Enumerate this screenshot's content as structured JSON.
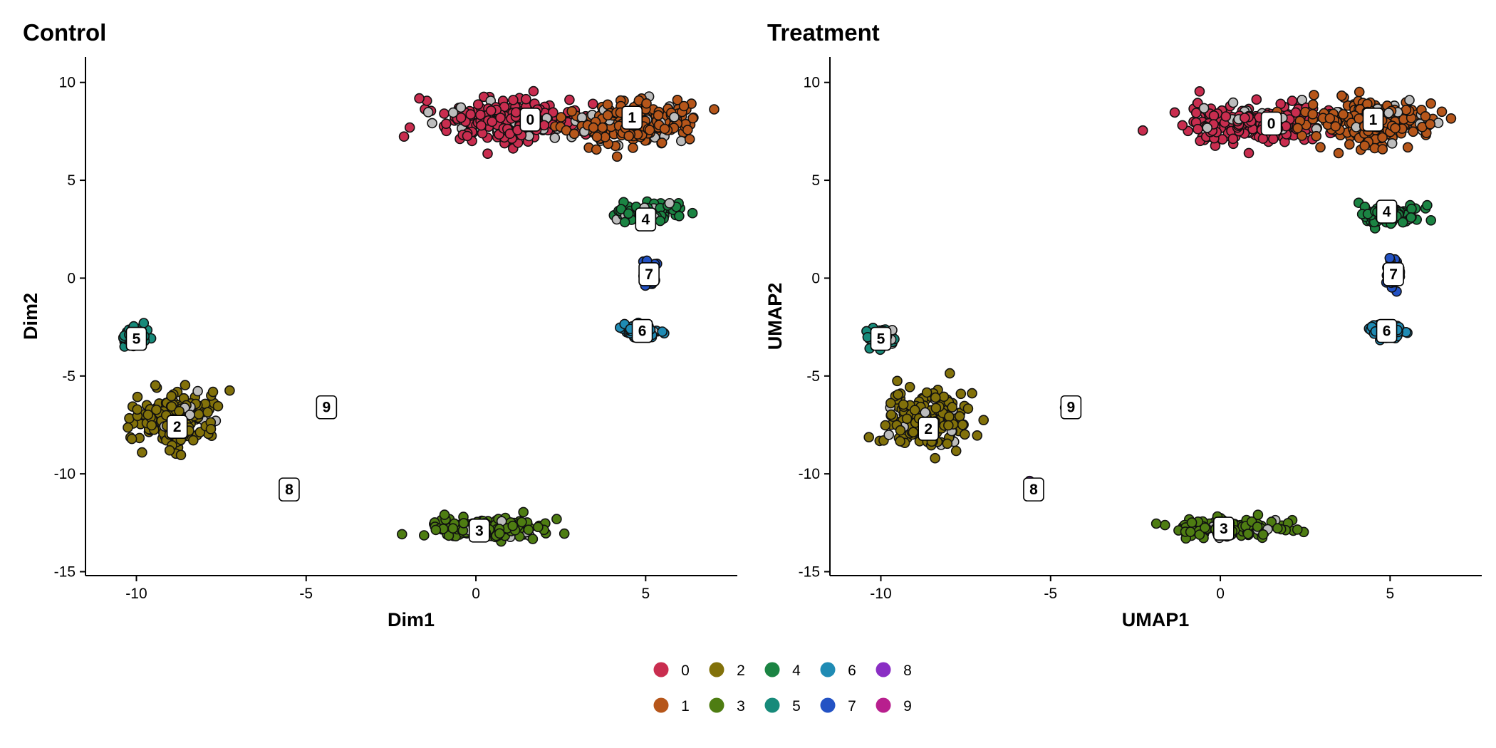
{
  "chart_data": [
    {
      "type": "scatter",
      "title": "Control",
      "xlabel": "Dim1",
      "ylabel": "Dim2",
      "xlim": [
        -11.5,
        7.7
      ],
      "ylim": [
        -15.2,
        11.3
      ],
      "xticks": [
        -10,
        -5,
        0,
        5
      ],
      "yticks": [
        -15,
        -10,
        -5,
        0,
        5,
        10
      ],
      "xtick_labels": [
        "-10",
        "-5",
        "0",
        "5"
      ],
      "ytick_labels": [
        "-15",
        "-10",
        "-5",
        "0",
        "5",
        "10"
      ],
      "grid": false,
      "clusters": [
        {
          "name": "0",
          "label_x": 1.6,
          "label_y": 8.1,
          "center": [
            1.0,
            8.0
          ],
          "spread": [
            1.9,
            0.85
          ],
          "n": 260
        },
        {
          "name": "1",
          "label_x": 4.6,
          "label_y": 8.2,
          "center": [
            4.7,
            8.0
          ],
          "spread": [
            1.6,
            1.0
          ],
          "n": 240
        },
        {
          "name": "2",
          "label_x": -8.8,
          "label_y": -7.6,
          "center": [
            -8.8,
            -7.2
          ],
          "spread": [
            1.0,
            1.3
          ],
          "n": 200
        },
        {
          "name": "3",
          "label_x": 0.1,
          "label_y": -12.9,
          "center": [
            0.3,
            -12.8
          ],
          "spread": [
            1.5,
            0.45
          ],
          "n": 160
        },
        {
          "name": "4",
          "label_x": 5.0,
          "label_y": 3.0,
          "center": [
            5.0,
            3.3
          ],
          "spread": [
            0.8,
            0.55
          ],
          "n": 90
        },
        {
          "name": "5",
          "label_x": -10.0,
          "label_y": -3.1,
          "center": [
            -10.0,
            -3.0
          ],
          "spread": [
            0.4,
            0.45
          ],
          "n": 50
        },
        {
          "name": "6",
          "label_x": 4.9,
          "label_y": -2.7,
          "center": [
            4.9,
            -2.7
          ],
          "spread": [
            0.45,
            0.3
          ],
          "n": 55
        },
        {
          "name": "7",
          "label_x": 5.1,
          "label_y": 0.2,
          "center": [
            5.1,
            0.2
          ],
          "spread": [
            0.18,
            0.8
          ],
          "n": 40
        },
        {
          "name": "8",
          "label_x": -5.5,
          "label_y": -10.8,
          "center": [
            -5.6,
            -10.5
          ],
          "spread": [
            0.1,
            0.1
          ],
          "n": 2
        },
        {
          "name": "9",
          "label_x": -4.4,
          "label_y": -6.6,
          "center": [
            -4.5,
            -6.6
          ],
          "spread": [
            0.05,
            0.05
          ],
          "n": 1
        }
      ]
    },
    {
      "type": "scatter",
      "title": "Treatment",
      "xlabel": "UMAP1",
      "ylabel": "UMAP2",
      "xlim": [
        -11.5,
        7.7
      ],
      "ylim": [
        -15.2,
        11.3
      ],
      "xticks": [
        -10,
        -5,
        0,
        5
      ],
      "yticks": [
        -15,
        -10,
        -5,
        0,
        5,
        10
      ],
      "xtick_labels": [
        "-10",
        "-5",
        "0",
        "5"
      ],
      "ytick_labels": [
        "-15",
        "-10",
        "-5",
        "0",
        "5",
        "10"
      ],
      "grid": false,
      "clusters": [
        {
          "name": "0",
          "label_x": 1.5,
          "label_y": 7.9,
          "center": [
            1.0,
            7.9
          ],
          "spread": [
            1.9,
            0.85
          ],
          "n": 260
        },
        {
          "name": "1",
          "label_x": 4.5,
          "label_y": 8.1,
          "center": [
            4.6,
            8.0
          ],
          "spread": [
            1.6,
            1.0
          ],
          "n": 240
        },
        {
          "name": "2",
          "label_x": -8.6,
          "label_y": -7.7,
          "center": [
            -8.7,
            -7.3
          ],
          "spread": [
            1.0,
            1.3
          ],
          "n": 200
        },
        {
          "name": "3",
          "label_x": 0.1,
          "label_y": -12.8,
          "center": [
            0.3,
            -12.8
          ],
          "spread": [
            1.5,
            0.45
          ],
          "n": 160
        },
        {
          "name": "4",
          "label_x": 4.9,
          "label_y": 3.4,
          "center": [
            5.0,
            3.2
          ],
          "spread": [
            0.8,
            0.55
          ],
          "n": 90
        },
        {
          "name": "5",
          "label_x": -10.0,
          "label_y": -3.1,
          "center": [
            -10.0,
            -3.0
          ],
          "spread": [
            0.4,
            0.45
          ],
          "n": 50
        },
        {
          "name": "6",
          "label_x": 4.9,
          "label_y": -2.7,
          "center": [
            4.9,
            -2.7
          ],
          "spread": [
            0.45,
            0.3
          ],
          "n": 55
        },
        {
          "name": "7",
          "label_x": 5.1,
          "label_y": 0.2,
          "center": [
            5.1,
            0.2
          ],
          "spread": [
            0.18,
            0.8
          ],
          "n": 40
        },
        {
          "name": "8",
          "label_x": -5.5,
          "label_y": -10.8,
          "center": [
            -5.6,
            -10.5
          ],
          "spread": [
            0.1,
            0.1
          ],
          "n": 2
        },
        {
          "name": "9",
          "label_x": -4.4,
          "label_y": -6.6,
          "center": [
            -4.5,
            -6.6
          ],
          "spread": [
            0.05,
            0.05
          ],
          "n": 1
        }
      ]
    }
  ],
  "legend": {
    "placement": "bottom",
    "items": [
      {
        "label": "0",
        "color": "#c92d4f"
      },
      {
        "label": "1",
        "color": "#b6561a"
      },
      {
        "label": "2",
        "color": "#82710a"
      },
      {
        "label": "3",
        "color": "#4e7d12"
      },
      {
        "label": "4",
        "color": "#1b8443"
      },
      {
        "label": "5",
        "color": "#178a7a"
      },
      {
        "label": "6",
        "color": "#1f8bb4"
      },
      {
        "label": "7",
        "color": "#2352c4"
      },
      {
        "label": "8",
        "color": "#8a2ec4"
      },
      {
        "label": "9",
        "color": "#b81f8e"
      }
    ]
  },
  "colors": {
    "unassigned": "#bdbdbd",
    "outline": "#111111"
  }
}
